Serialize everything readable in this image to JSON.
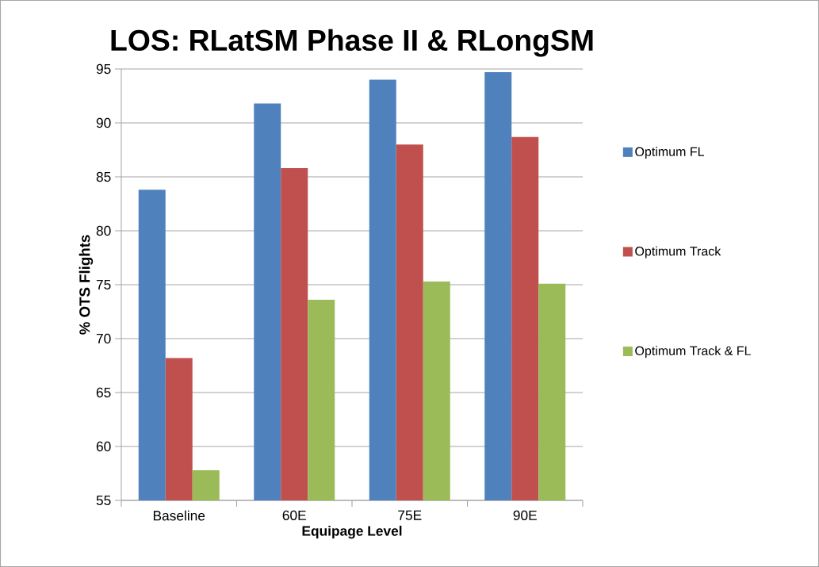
{
  "chart_data": {
    "type": "bar",
    "title": "LOS: RLatSM Phase II & RLongSM",
    "xlabel": "Equipage Level",
    "ylabel": "% OTS Flights",
    "categories": [
      "Baseline",
      "60E",
      "75E",
      "90E"
    ],
    "series": [
      {
        "name": "Optimum FL",
        "color": "#4f81bd",
        "values": [
          83.8,
          91.8,
          94.0,
          94.7
        ]
      },
      {
        "name": "Optimum Track",
        "color": "#c0504d",
        "values": [
          68.2,
          85.8,
          88.0,
          88.7
        ]
      },
      {
        "name": "Optimum Track & FL",
        "color": "#9bbb59",
        "values": [
          57.8,
          73.6,
          75.3,
          75.1
        ]
      }
    ],
    "ylim": [
      55,
      95
    ],
    "yticks": [
      55,
      60,
      65,
      70,
      75,
      80,
      85,
      90,
      95
    ],
    "grid": "y",
    "legend": "right"
  }
}
